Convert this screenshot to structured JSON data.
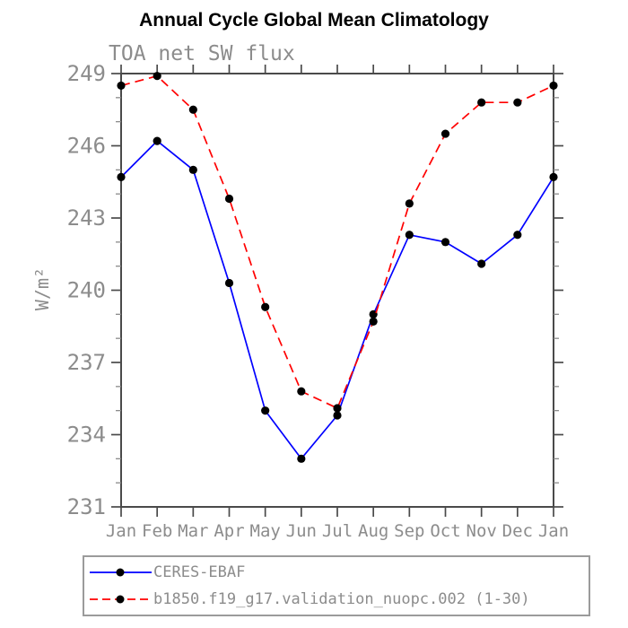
{
  "window": {
    "background": "#ffffff"
  },
  "chart_data": {
    "type": "line",
    "title": "Annual Cycle Global Mean Climatology",
    "subtitle": "TOA net SW flux",
    "xlabel": "",
    "ylabel": "W/m²",
    "categories": [
      "Jan",
      "Feb",
      "Mar",
      "Apr",
      "May",
      "Jun",
      "Jul",
      "Aug",
      "Sep",
      "Oct",
      "Nov",
      "Dec",
      "Jan"
    ],
    "ylim": [
      231,
      249
    ],
    "ytick_major": 3,
    "ytick_minor": 1,
    "grid": false,
    "legend_position": "boxed below plot, left-aligned",
    "frame_color": "#4a4a4a",
    "minor_tick_color": "#8a8a8a",
    "label_color": "#8c8c8c",
    "marker_color": "#000000",
    "series": [
      {
        "name": "CERES-EBAF",
        "color": "#0000ff",
        "line_style": "solid",
        "marker": "circle",
        "values": [
          244.7,
          246.2,
          245.0,
          240.3,
          235.0,
          233.0,
          234.8,
          239.0,
          242.3,
          242.0,
          241.1,
          242.3,
          244.7
        ]
      },
      {
        "name": "b1850.f19_g17.validation_nuopc.002 (1-30)",
        "color": "#ff0000",
        "line_style": "dashed",
        "marker": "circle",
        "values": [
          248.5,
          248.9,
          247.5,
          243.8,
          239.3,
          235.8,
          235.1,
          238.7,
          243.6,
          246.5,
          247.8,
          247.8,
          248.5
        ]
      }
    ]
  }
}
